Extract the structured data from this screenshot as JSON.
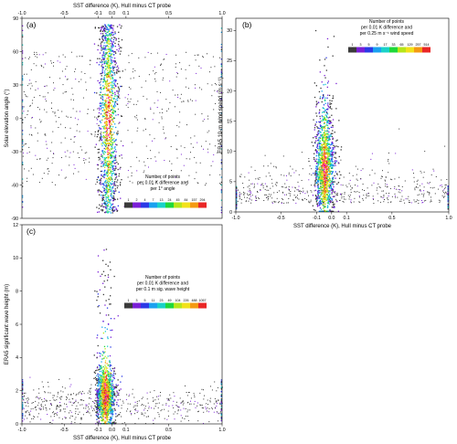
{
  "chart_data": [
    {
      "type": "heatmap",
      "panel_label": "(a)",
      "xlabel": "SST difference (K), Hull minus CT probe",
      "ylabel": "Solar elevation angle (°)",
      "x_ticks": [
        "-1.0",
        "-0.5",
        "-0.1",
        "0.0",
        "0.1",
        "0.5",
        "1.0"
      ],
      "x_tick_values": [
        -1.0,
        -0.5,
        -0.1,
        0.0,
        0.1,
        0.5,
        1.0
      ],
      "y_ticks": [
        "-90",
        "-60",
        "-30",
        "0",
        "30",
        "60",
        "90"
      ],
      "y_tick_values": [
        -90,
        -60,
        -30,
        0,
        30,
        60,
        90
      ],
      "xlim": [
        -1.0,
        1.0
      ],
      "ylim": [
        -90,
        90
      ],
      "legend_title": [
        "Number of points",
        "per 0.01 K difference and",
        "per 1° angle"
      ],
      "colorbar_labels": [
        "1",
        "2",
        "4",
        "7",
        "13",
        "24",
        "45",
        "84",
        "157",
        "294"
      ],
      "core_range": [
        -0.1,
        0.05
      ],
      "peak_x": -0.03,
      "y_center": 0,
      "x_axis_position": "top"
    },
    {
      "type": "heatmap",
      "panel_label": "(b)",
      "xlabel": "SST difference (K), Hull minus CT probe",
      "ylabel": "ERA5 10-m wind speed (m s⁻¹)",
      "x_ticks": [
        "-1.0",
        "-0.5",
        "-0.1",
        "0.0",
        "0.1",
        "0.5",
        "1.0"
      ],
      "x_tick_values": [
        -1.0,
        -0.5,
        -0.1,
        0.0,
        0.1,
        0.5,
        1.0
      ],
      "y_ticks": [
        "0",
        "5",
        "10",
        "15",
        "20",
        "25",
        "30"
      ],
      "y_tick_values": [
        0,
        5,
        10,
        15,
        20,
        25,
        30
      ],
      "xlim": [
        -1.0,
        1.0
      ],
      "ylim": [
        0,
        32
      ],
      "legend_title": [
        "Number of points",
        "per 0.01 K difference and",
        "per 0.25 m s⁻¹ wind speed"
      ],
      "colorbar_labels": [
        "1",
        "3",
        "5",
        "9",
        "17",
        "33",
        "65",
        "129",
        "257",
        "514"
      ],
      "core_range": [
        -0.12,
        0.02
      ],
      "peak_x": -0.05,
      "y_center": 7
    },
    {
      "type": "heatmap",
      "panel_label": "(c)",
      "xlabel": "SST difference (K), Hull minus CT probe",
      "ylabel": "ERA5 significant wave height (m)",
      "x_ticks": [
        "-1.0",
        "-0.5",
        "-0.1",
        "0.0",
        "0.1",
        "0.5",
        "1.0"
      ],
      "x_tick_values": [
        -1.0,
        -0.5,
        -0.1,
        0.0,
        0.1,
        0.5,
        1.0
      ],
      "y_ticks": [
        "0",
        "2",
        "4",
        "6",
        "8",
        "10",
        "12"
      ],
      "y_tick_values": [
        0,
        2,
        4,
        6,
        8,
        10,
        12
      ],
      "xlim": [
        -1.0,
        1.0
      ],
      "ylim": [
        0,
        12
      ],
      "legend_title": [
        "Number of points",
        "per 0.01 K difference and",
        "per 0.1 m sig. wave height"
      ],
      "colorbar_labels": [
        "1",
        "3",
        "5",
        "11",
        "23",
        "49",
        "104",
        "226",
        "488",
        "1057"
      ],
      "core_range": [
        -0.12,
        0.02
      ],
      "peak_x": -0.05,
      "y_center": 1.7
    }
  ],
  "colorscale": [
    "#3a3a3a",
    "#7a1fd6",
    "#2b39e6",
    "#1aa1f0",
    "#19d2c8",
    "#1ed83a",
    "#b6e61a",
    "#f2e21a",
    "#f49a12",
    "#ea2626",
    "#ff33cc"
  ]
}
